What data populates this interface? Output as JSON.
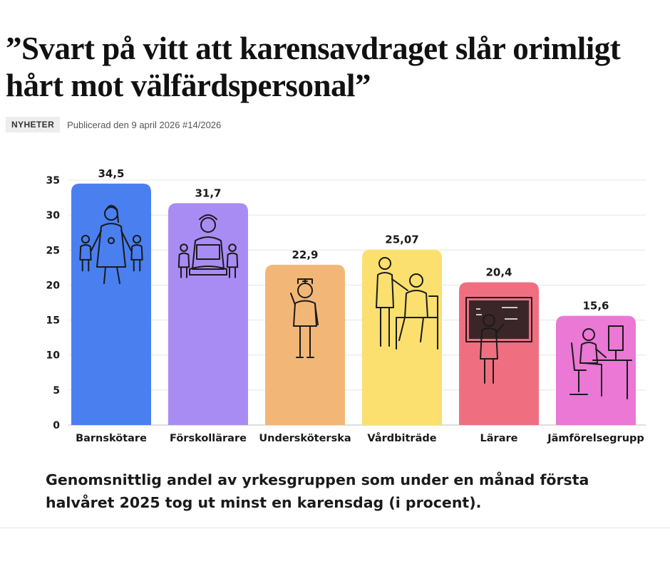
{
  "article": {
    "headline": "”Svart på vitt att karensavdraget slår orimligt hårt mot välfärdspersonal”",
    "category": "NYHETER",
    "published": "Publicerad den 9 april 2026 #14/2026"
  },
  "chart_data": {
    "type": "bar",
    "categories": [
      "Barnskötare",
      "Förskollärare",
      "Undersköterska",
      "Vårdbiträde",
      "Lärare",
      "Jämförelsegrupp"
    ],
    "values": [
      34.5,
      31.7,
      22.9,
      25.07,
      20.4,
      15.6
    ],
    "value_labels": [
      "34,5",
      "31,7",
      "22,9",
      "25,07",
      "20,4",
      "15,6"
    ],
    "colors": [
      "#4a7ff0",
      "#a98cf3",
      "#f2b777",
      "#fbdf6f",
      "#ef6f81",
      "#ea78d4"
    ],
    "icons": [
      "teacher-with-children-icon",
      "teacher-reading-icon",
      "nurse-icon",
      "caregiver-helping-elder-icon",
      "teacher-at-blackboard-icon",
      "office-worker-icon"
    ],
    "ylim": [
      0,
      35
    ],
    "yticks": [
      0,
      5,
      10,
      15,
      20,
      25,
      30,
      35
    ],
    "grid": true,
    "title": "",
    "xlabel": "",
    "ylabel": "",
    "caption": "Genomsnittlig andel av yrkesgruppen som under en månad första halvåret 2025 tog ut minst en karensdag (i procent)."
  }
}
